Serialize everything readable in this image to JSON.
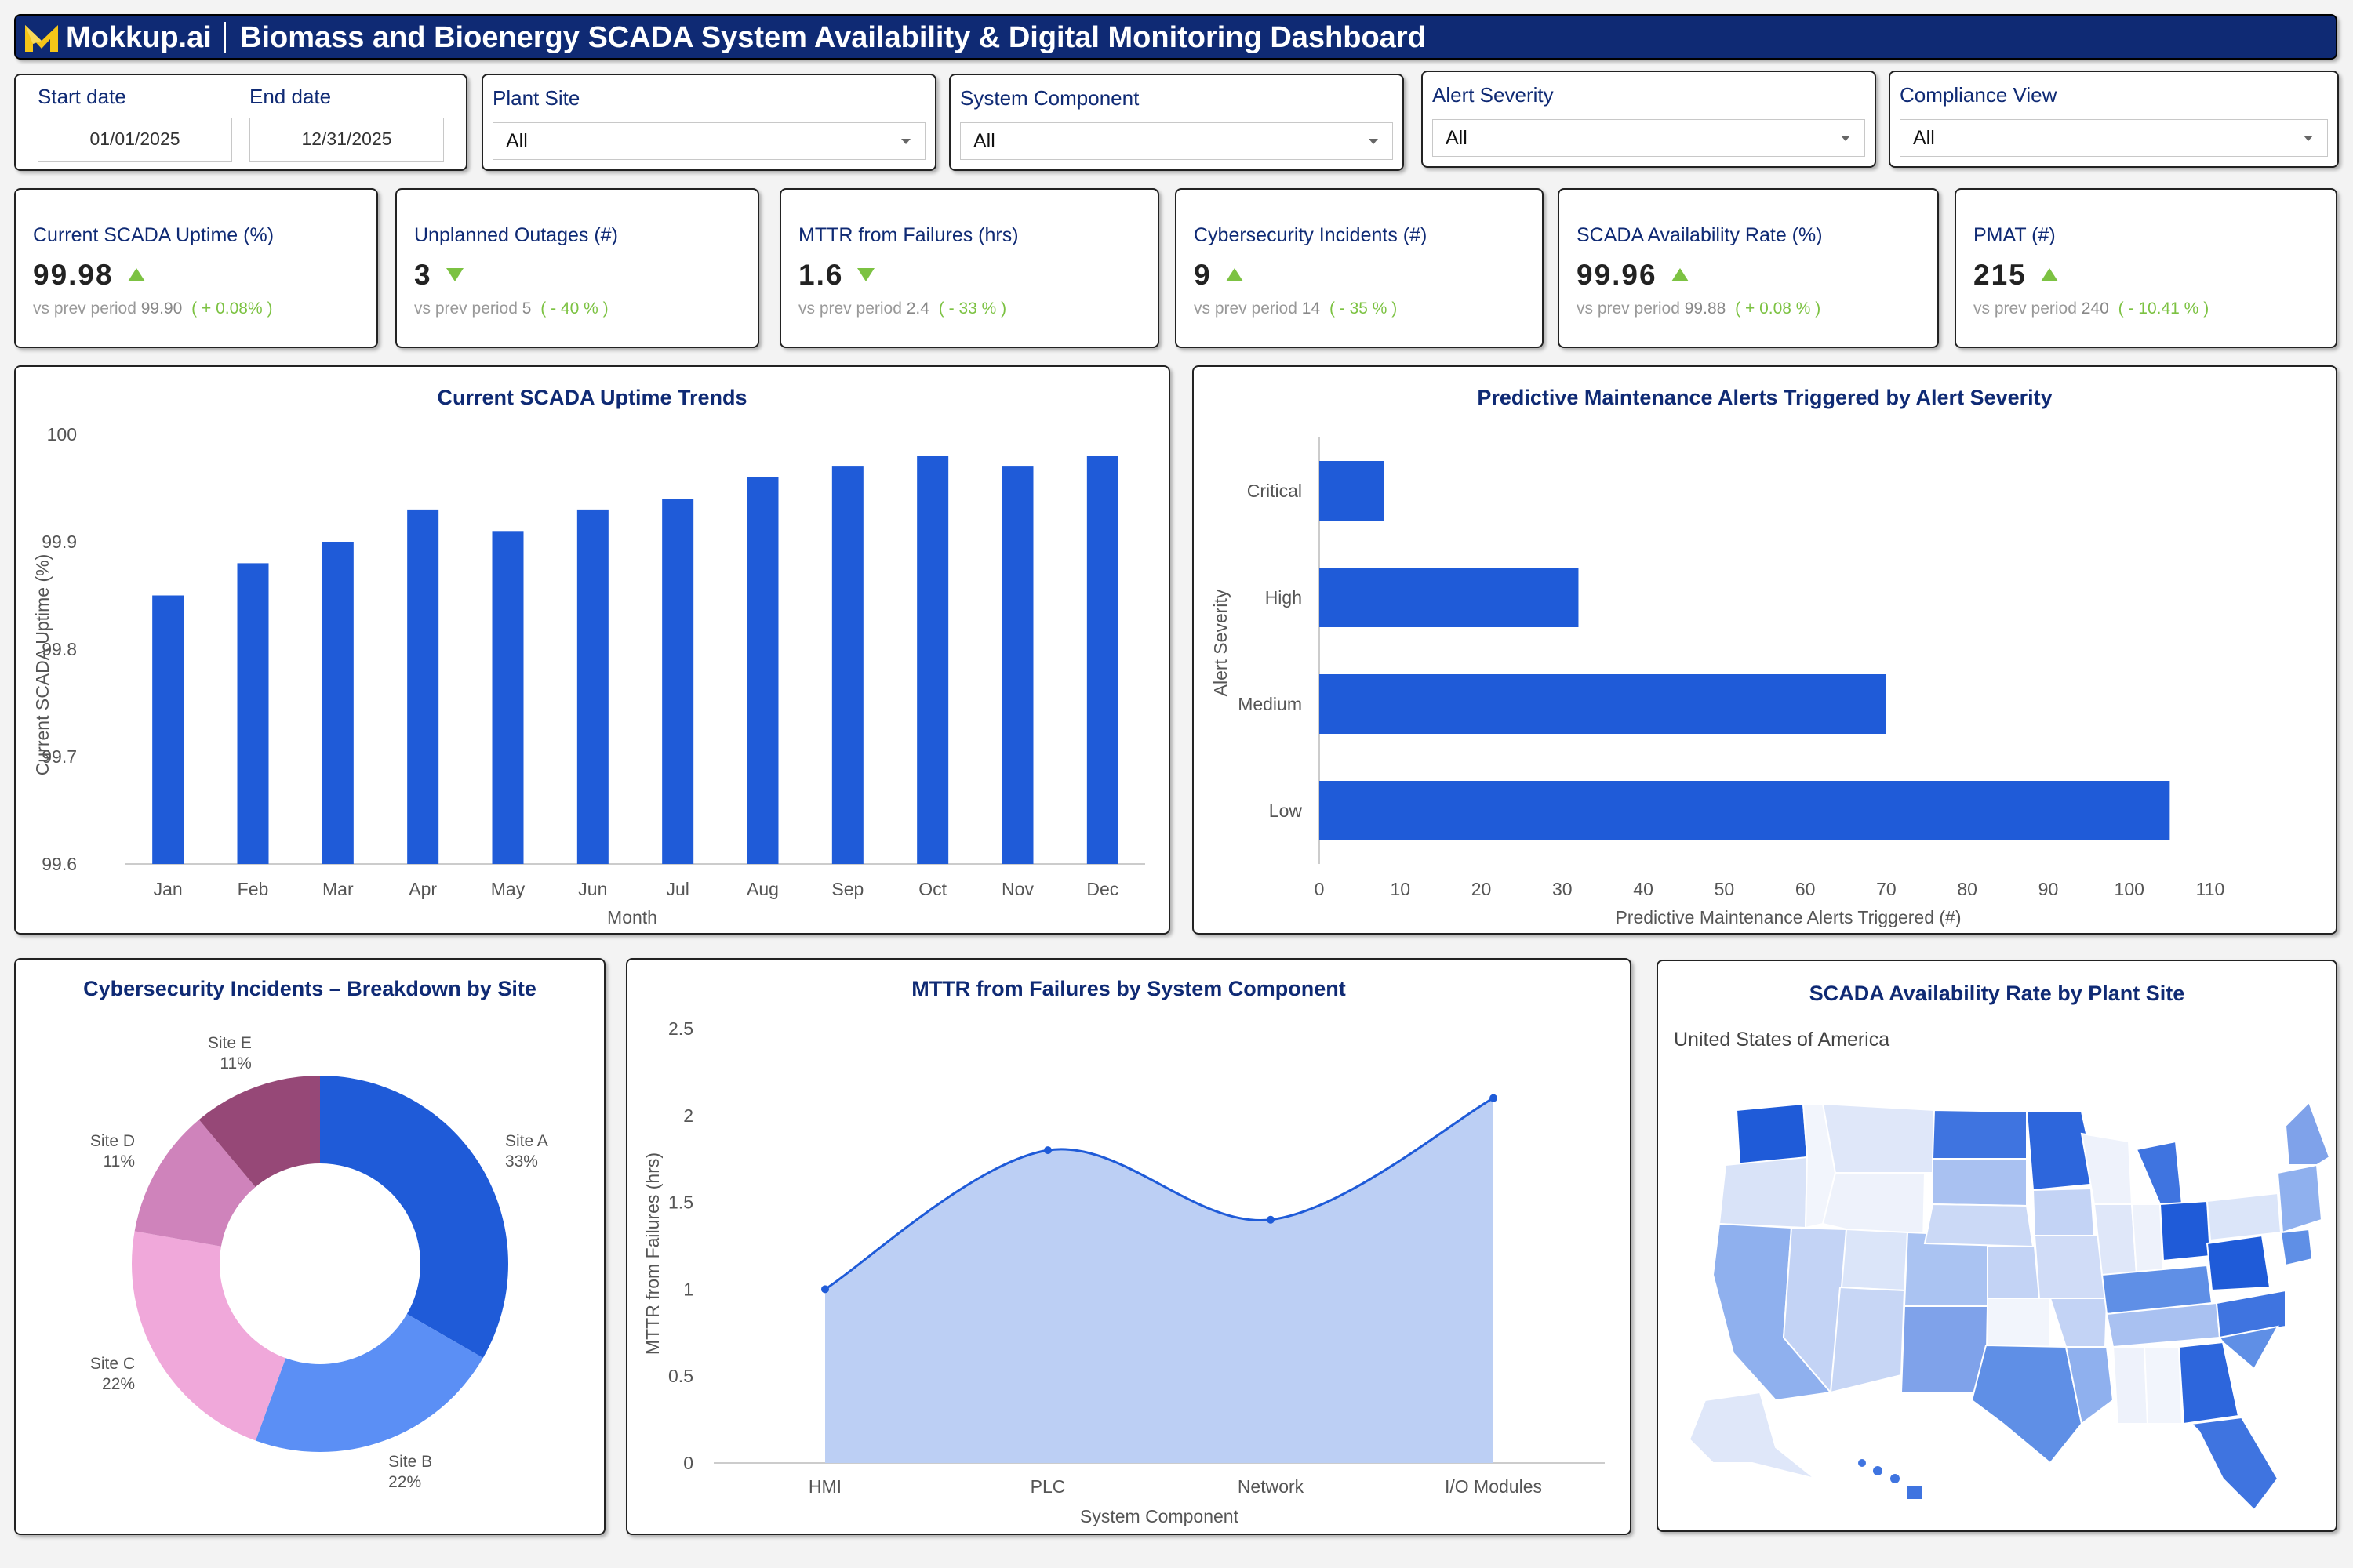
{
  "header": {
    "logo": "Mokkup.ai",
    "title": "Biomass and Bioenergy SCADA System Availability & Digital Monitoring Dashboard"
  },
  "filters": {
    "start_label": "Start date",
    "start_value": "01/01/2025",
    "end_label": "End date",
    "end_value": "12/31/2025",
    "plant_site": {
      "label": "Plant Site",
      "value": "All"
    },
    "system_component": {
      "label": "System Component",
      "value": "All"
    },
    "alert_severity": {
      "label": "Alert Severity",
      "value": "All"
    },
    "compliance_view": {
      "label": "Compliance View",
      "value": "All"
    }
  },
  "kpis": [
    {
      "label": "Current SCADA Uptime (%)",
      "value": "99.98",
      "trend": "up",
      "prev_text": "vs prev period",
      "prev": "99.90",
      "delta": "( + 0.08% )"
    },
    {
      "label": "Unplanned Outages (#)",
      "value": "3",
      "trend": "down",
      "prev_text": "vs prev period",
      "prev": "5",
      "delta": "( - 40 % )"
    },
    {
      "label": "MTTR from Failures (hrs)",
      "value": "1.6",
      "trend": "down",
      "prev_text": "vs prev period",
      "prev": "2.4",
      "delta": "( - 33 % )"
    },
    {
      "label": "Cybersecurity Incidents (#)",
      "value": "9",
      "trend": "up",
      "prev_text": "vs prev period",
      "prev": "14",
      "delta": "( - 35 % )"
    },
    {
      "label": "SCADA Availability Rate (%)",
      "value": "99.96",
      "trend": "up",
      "prev_text": "vs prev period",
      "prev": "99.88",
      "delta": "( + 0.08 % )"
    },
    {
      "label": "PMAT (#)",
      "value": "215",
      "trend": "up",
      "prev_text": "vs prev period",
      "prev": "240",
      "delta": "( - 10.41 % )"
    }
  ],
  "colors": {
    "primary": "#1f5bd8",
    "navy": "#0f2a74",
    "positive": "#7cc242"
  },
  "chart_data": [
    {
      "type": "bar",
      "title": "Current SCADA Uptime Trends",
      "xlabel": "Month",
      "ylabel": "Current SCADA Uptime (%)",
      "categories": [
        "Jan",
        "Feb",
        "Mar",
        "Apr",
        "May",
        "Jun",
        "Jul",
        "Aug",
        "Sep",
        "Oct",
        "Nov",
        "Dec"
      ],
      "values": [
        99.85,
        99.88,
        99.9,
        99.93,
        99.91,
        99.93,
        99.94,
        99.96,
        99.97,
        99.98,
        99.97,
        99.98
      ],
      "ylim": [
        99.6,
        100
      ],
      "yticks": [
        "99.6",
        "99.7",
        "99.8",
        "99.9",
        "100"
      ]
    },
    {
      "type": "bar",
      "orientation": "horizontal",
      "title": "Predictive Maintenance Alerts Triggered by Alert Severity",
      "xlabel": "Predictive Maintenance Alerts Triggered (#)",
      "ylabel": "Alert Severity",
      "categories": [
        "Critical",
        "High",
        "Medium",
        "Low"
      ],
      "values": [
        8,
        32,
        70,
        105
      ],
      "xlim": [
        0,
        110
      ],
      "xticks": [
        "0",
        "10",
        "20",
        "30",
        "40",
        "50",
        "60",
        "70",
        "80",
        "90",
        "100",
        "110"
      ]
    },
    {
      "type": "pie",
      "title": "Cybersecurity Incidents – Breakdown by Site",
      "labels": [
        "Site A",
        "Site B",
        "Site C",
        "Site D",
        "Site E"
      ],
      "values": [
        33,
        22,
        22,
        11,
        11
      ],
      "value_labels": [
        "33%",
        "22%",
        "22%",
        "11%",
        "11%"
      ],
      "colors": [
        "#1f5bd8",
        "#5b8ff5",
        "#f0a8da",
        "#cf83bb",
        "#964877"
      ]
    },
    {
      "type": "area",
      "title": "MTTR from Failures by System Component",
      "xlabel": "System Component",
      "ylabel": "MTTR from Failures (hrs)",
      "categories": [
        "HMI",
        "PLC",
        "Network",
        "I/O Modules"
      ],
      "values": [
        1.0,
        1.8,
        1.4,
        2.1
      ],
      "ylim": [
        0,
        2.5
      ],
      "yticks": [
        "0",
        "0.5",
        "1",
        "1.5",
        "2",
        "2.5"
      ]
    }
  ],
  "map": {
    "title": "SCADA Availability Rate by Plant Site",
    "region": "United States of America"
  }
}
